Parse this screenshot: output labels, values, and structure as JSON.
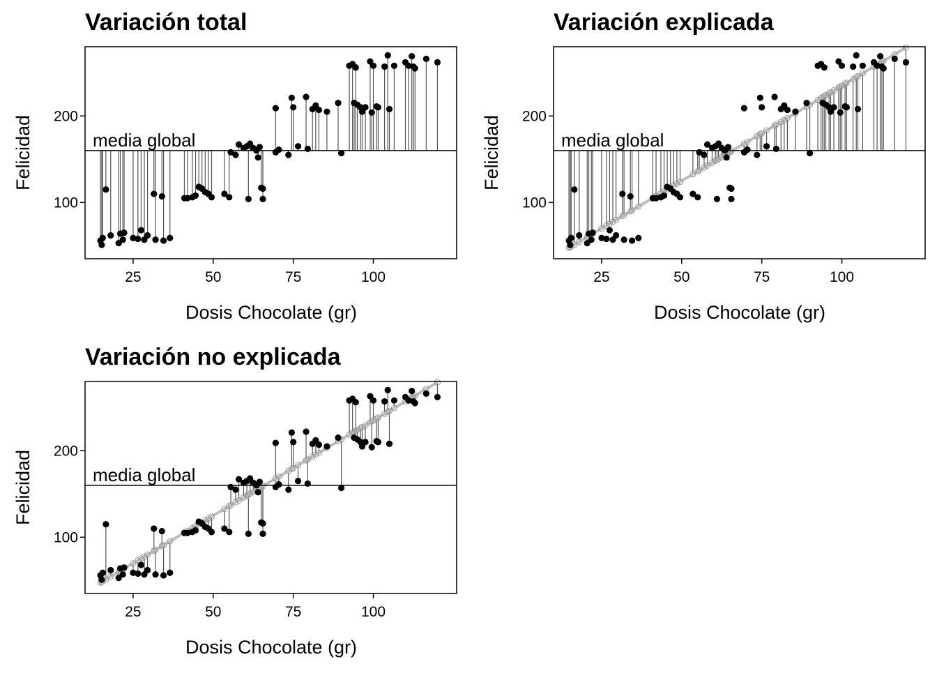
{
  "chart_data": [
    {
      "type": "scatter",
      "title": "Variación total",
      "xlabel": "Dosis Chocolate (gr)",
      "ylabel": "Felicidad",
      "annotation": "media global",
      "segments_to": "mean",
      "show_fit": false,
      "xlim": [
        10,
        126
      ],
      "ylim": [
        35,
        280
      ],
      "xticks": [
        25,
        50,
        75,
        100
      ],
      "yticks": [
        100,
        200
      ],
      "mean": 160
    },
    {
      "type": "scatter",
      "title": "Variación explicada",
      "xlabel": "Dosis Chocolate (gr)",
      "ylabel": "Felicidad",
      "annotation": "media global",
      "segments_to": "fit_from_mean",
      "show_fit": true,
      "xlim": [
        10,
        126
      ],
      "ylim": [
        35,
        280
      ],
      "xticks": [
        25,
        50,
        75,
        100
      ],
      "yticks": [
        100,
        200
      ],
      "mean": 160
    },
    {
      "type": "scatter",
      "title": "Variación no explicada",
      "xlabel": "Dosis Chocolate (gr)",
      "ylabel": "Felicidad",
      "annotation": "media global",
      "segments_to": "fit",
      "show_fit": true,
      "xlim": [
        10,
        126
      ],
      "ylim": [
        35,
        280
      ],
      "xticks": [
        25,
        50,
        75,
        100
      ],
      "yticks": [
        100,
        200
      ],
      "mean": 160
    }
  ],
  "fit": {
    "intercept": 15,
    "slope": 2.2
  },
  "points": [
    [
      14.8,
      56
    ],
    [
      15.2,
      51
    ],
    [
      15.5,
      59
    ],
    [
      16.5,
      115
    ],
    [
      18,
      62
    ],
    [
      20.5,
      53
    ],
    [
      21,
      64
    ],
    [
      21.8,
      57
    ],
    [
      22.2,
      65
    ],
    [
      25,
      59
    ],
    [
      26.5,
      58
    ],
    [
      27.5,
      68
    ],
    [
      28.5,
      57
    ],
    [
      29.5,
      62
    ],
    [
      31.5,
      110
    ],
    [
      32,
      57
    ],
    [
      34,
      107
    ],
    [
      34.5,
      56
    ],
    [
      36.5,
      59
    ],
    [
      41,
      105
    ],
    [
      42,
      105
    ],
    [
      43.5,
      106
    ],
    [
      44.5,
      108
    ],
    [
      45.5,
      118
    ],
    [
      46.5,
      116
    ],
    [
      47.5,
      112
    ],
    [
      48.5,
      110
    ],
    [
      49.5,
      106
    ],
    [
      53.5,
      110
    ],
    [
      55,
      106
    ],
    [
      55.5,
      158
    ],
    [
      57,
      155
    ],
    [
      58,
      167
    ],
    [
      59.5,
      163
    ],
    [
      60.5,
      165
    ],
    [
      61,
      104
    ],
    [
      61.5,
      168
    ],
    [
      62.5,
      163
    ],
    [
      63.5,
      160
    ],
    [
      64,
      152
    ],
    [
      64.5,
      164
    ],
    [
      65,
      117
    ],
    [
      65.5,
      116
    ],
    [
      65.5,
      104
    ],
    [
      69.5,
      209
    ],
    [
      69.5,
      158
    ],
    [
      70.5,
      161
    ],
    [
      73.5,
      155
    ],
    [
      74.5,
      221
    ],
    [
      75,
      210
    ],
    [
      76.5,
      165
    ],
    [
      79,
      222
    ],
    [
      79.5,
      162
    ],
    [
      81,
      208
    ],
    [
      82,
      212
    ],
    [
      83,
      207
    ],
    [
      85.5,
      205
    ],
    [
      89,
      215
    ],
    [
      90,
      157
    ],
    [
      92.5,
      258
    ],
    [
      93.5,
      260
    ],
    [
      94,
      215
    ],
    [
      94.5,
      256
    ],
    [
      95,
      213
    ],
    [
      96,
      210
    ],
    [
      96.5,
      205
    ],
    [
      97.5,
      210
    ],
    [
      99,
      263
    ],
    [
      99.5,
      204
    ],
    [
      100,
      258
    ],
    [
      101,
      211
    ],
    [
      101.5,
      210
    ],
    [
      103.5,
      257
    ],
    [
      104.5,
      270
    ],
    [
      105,
      208
    ],
    [
      106.5,
      258
    ],
    [
      110,
      262
    ],
    [
      111,
      258
    ],
    [
      112,
      269
    ],
    [
      112.5,
      257
    ],
    [
      113,
      255
    ],
    [
      116.5,
      266
    ],
    [
      120,
      262
    ]
  ]
}
